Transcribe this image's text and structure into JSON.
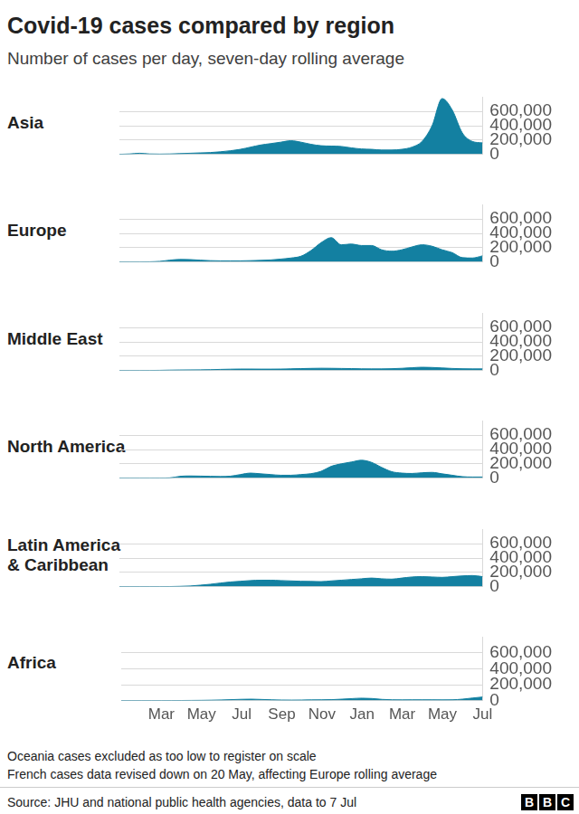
{
  "title": "Covid-19 cases compared by region",
  "subtitle": "Number of cases per day, seven-day rolling average",
  "notes": [
    "Oceania cases excluded as too low to register on scale",
    "French cases data revised down on 20 May, affecting Europe rolling average"
  ],
  "source": "Source: JHU and national public health agencies, data to 7 Jul",
  "logo": "BBC",
  "chart_data": [
    {
      "type": "area",
      "title": "Asia",
      "color": "#1380a1",
      "grid": true,
      "tick_labels": "y",
      "categories": [
        null,
        null,
        null,
        null,
        "Mar",
        null,
        null,
        null,
        "May",
        null,
        null,
        null,
        "Jul",
        null,
        null,
        null,
        "Sep",
        null,
        null,
        null,
        "Nov",
        null,
        null,
        null,
        "Jan",
        null,
        null,
        null,
        "Mar",
        null,
        null,
        null,
        "May",
        null,
        null,
        null,
        "Jul"
      ],
      "values": [
        0,
        5000,
        15000,
        5000,
        3000,
        5000,
        10000,
        15000,
        20000,
        25000,
        35000,
        50000,
        70000,
        100000,
        130000,
        150000,
        170000,
        190000,
        170000,
        140000,
        120000,
        115000,
        110000,
        90000,
        75000,
        70000,
        60000,
        60000,
        70000,
        100000,
        180000,
        400000,
        780000,
        620000,
        300000,
        180000,
        160000
      ],
      "ylim": [
        0,
        800000
      ],
      "yticks": [
        0,
        {
          "value": 200000,
          "label": "200,000"
        },
        {
          "value": 400000,
          "label": "400,000"
        },
        {
          "value": 600000,
          "label": "600,000"
        }
      ]
    },
    {
      "type": "area",
      "title": "Europe",
      "color": "#1380a1",
      "grid": true,
      "tick_labels": "y",
      "categories": [
        null,
        null,
        null,
        null,
        "Mar",
        null,
        null,
        null,
        "May",
        null,
        null,
        null,
        "Jul",
        null,
        null,
        null,
        "Sep",
        null,
        null,
        null,
        "Nov",
        null,
        null,
        null,
        "Jan",
        null,
        null,
        null,
        "Mar",
        null,
        null,
        null,
        "May",
        null,
        null,
        null,
        "Jul"
      ],
      "values": [
        0,
        0,
        0,
        2000,
        8000,
        25000,
        35000,
        33000,
        25000,
        18000,
        15000,
        15000,
        15000,
        18000,
        22000,
        28000,
        40000,
        55000,
        80000,
        160000,
        270000,
        340000,
        240000,
        250000,
        230000,
        230000,
        170000,
        150000,
        170000,
        210000,
        240000,
        220000,
        170000,
        130000,
        60000,
        55000,
        85000
      ],
      "ylim": [
        0,
        800000
      ],
      "yticks": [
        0,
        {
          "value": 200000,
          "label": "200,000"
        },
        {
          "value": 400000,
          "label": "400,000"
        },
        {
          "value": 600000,
          "label": "600,000"
        }
      ]
    },
    {
      "type": "area",
      "title": "Middle East",
      "color": "#1380a1",
      "grid": true,
      "tick_labels": "y",
      "categories": [
        null,
        null,
        null,
        null,
        "Mar",
        null,
        null,
        null,
        "May",
        null,
        null,
        null,
        "Jul",
        null,
        null,
        null,
        "Sep",
        null,
        null,
        null,
        "Nov",
        null,
        null,
        null,
        "Jan",
        null,
        null,
        null,
        "Mar",
        null,
        null,
        null,
        "May",
        null,
        null,
        null,
        "Jul"
      ],
      "values": [
        0,
        0,
        0,
        500,
        2000,
        5000,
        7000,
        8000,
        9000,
        11000,
        15000,
        18000,
        20000,
        20000,
        19000,
        19000,
        20000,
        23000,
        26000,
        29000,
        31000,
        30000,
        28000,
        26000,
        23000,
        22000,
        22000,
        25000,
        30000,
        38000,
        45000,
        42000,
        35000,
        28000,
        24000,
        22000,
        22000
      ],
      "ylim": [
        0,
        800000
      ],
      "yticks": [
        0,
        {
          "value": 200000,
          "label": "200,000"
        },
        {
          "value": 400000,
          "label": "400,000"
        },
        {
          "value": 600000,
          "label": "600,000"
        }
      ]
    },
    {
      "type": "area",
      "title": "North America",
      "color": "#1380a1",
      "grid": true,
      "tick_labels": "y",
      "categories": [
        null,
        null,
        null,
        null,
        "Mar",
        null,
        null,
        null,
        "May",
        null,
        null,
        null,
        "Jul",
        null,
        null,
        null,
        "Sep",
        null,
        null,
        null,
        "Nov",
        null,
        null,
        null,
        "Jan",
        null,
        null,
        null,
        "Mar",
        null,
        null,
        null,
        "May",
        null,
        null,
        null,
        "Jul"
      ],
      "values": [
        0,
        0,
        0,
        0,
        500,
        3000,
        25000,
        30000,
        28000,
        25000,
        22000,
        27000,
        50000,
        70000,
        60000,
        50000,
        40000,
        40000,
        50000,
        62000,
        95000,
        165000,
        200000,
        225000,
        250000,
        220000,
        150000,
        90000,
        70000,
        65000,
        75000,
        80000,
        60000,
        40000,
        20000,
        15000,
        15000
      ],
      "ylim": [
        0,
        800000
      ],
      "yticks": [
        0,
        {
          "value": 200000,
          "label": "200,000"
        },
        {
          "value": 400000,
          "label": "400,000"
        },
        {
          "value": 600000,
          "label": "600,000"
        }
      ]
    },
    {
      "type": "area",
      "title": [
        "Latin America",
        "& Caribbean"
      ],
      "color": "#1380a1",
      "grid": true,
      "tick_labels": "y",
      "categories": [
        null,
        null,
        null,
        null,
        "Mar",
        null,
        null,
        null,
        "May",
        null,
        null,
        null,
        "Jul",
        null,
        null,
        null,
        "Sep",
        null,
        null,
        null,
        "Nov",
        null,
        null,
        null,
        "Jan",
        null,
        null,
        null,
        "Mar",
        null,
        null,
        null,
        "May",
        null,
        null,
        null,
        "Jul"
      ],
      "values": [
        0,
        0,
        0,
        0,
        0,
        1000,
        4000,
        9000,
        20000,
        33000,
        50000,
        65000,
        75000,
        85000,
        90000,
        90000,
        85000,
        80000,
        75000,
        73000,
        70000,
        80000,
        90000,
        100000,
        110000,
        120000,
        110000,
        105000,
        120000,
        135000,
        140000,
        135000,
        130000,
        140000,
        150000,
        155000,
        140000
      ],
      "ylim": [
        0,
        800000
      ],
      "yticks": [
        0,
        {
          "value": 200000,
          "label": "200,000"
        },
        {
          "value": 400000,
          "label": "400,000"
        },
        {
          "value": 600000,
          "label": "600,000"
        }
      ]
    },
    {
      "type": "area",
      "title": "Africa",
      "color": "#1380a1",
      "grid": true,
      "tick_labels": true,
      "categories": [
        null,
        null,
        null,
        null,
        "Mar",
        null,
        null,
        null,
        "May",
        null,
        null,
        null,
        "Jul",
        null,
        null,
        null,
        "Sep",
        null,
        null,
        null,
        "Nov",
        null,
        null,
        null,
        "Jan",
        null,
        null,
        null,
        "Mar",
        null,
        null,
        null,
        "May",
        null,
        null,
        null,
        "Jul"
      ],
      "values": [
        0,
        0,
        0,
        0,
        0,
        500,
        1000,
        2000,
        3000,
        5000,
        8000,
        12000,
        16000,
        18000,
        14000,
        10000,
        7000,
        6000,
        7000,
        9000,
        10000,
        12000,
        18000,
        25000,
        30000,
        26000,
        15000,
        10000,
        9000,
        10000,
        10000,
        10000,
        9000,
        10000,
        18000,
        32000,
        45000
      ],
      "ylim": [
        0,
        800000
      ],
      "yticks": [
        0,
        {
          "value": 200000,
          "label": "200,000"
        },
        {
          "value": 400000,
          "label": "400,000"
        },
        {
          "value": 600000,
          "label": "600,000"
        }
      ]
    }
  ]
}
